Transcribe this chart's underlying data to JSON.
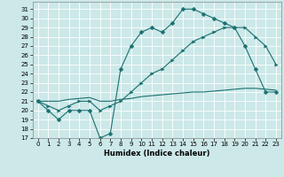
{
  "title": "",
  "xlabel": "Humidex (Indice chaleur)",
  "background_color": "#cce8e8",
  "grid_color": "#ffffff",
  "line_color": "#1a7070",
  "xlim": [
    -0.5,
    23.5
  ],
  "ylim": [
    17,
    31.8
  ],
  "yticks": [
    17,
    18,
    19,
    20,
    21,
    22,
    23,
    24,
    25,
    26,
    27,
    28,
    29,
    30,
    31
  ],
  "xticks": [
    0,
    1,
    2,
    3,
    4,
    5,
    6,
    7,
    8,
    9,
    10,
    11,
    12,
    13,
    14,
    15,
    16,
    17,
    18,
    19,
    20,
    21,
    22,
    23
  ],
  "line1_x": [
    0,
    1,
    2,
    3,
    4,
    5,
    6,
    7,
    8,
    9,
    10,
    11,
    12,
    13,
    14,
    15,
    16,
    17,
    18,
    19,
    20,
    21,
    22,
    23
  ],
  "line1_y": [
    21,
    20,
    19,
    20,
    20,
    20,
    17,
    17.5,
    24.5,
    27,
    28.5,
    29,
    28.5,
    29.5,
    31,
    31,
    30.5,
    30,
    29.5,
    29,
    27,
    24.5,
    22,
    22
  ],
  "line2_x": [
    0,
    1,
    2,
    3,
    4,
    5,
    6,
    7,
    8,
    9,
    10,
    11,
    12,
    13,
    14,
    15,
    16,
    17,
    18,
    19,
    20,
    21,
    22,
    23
  ],
  "line2_y": [
    21,
    20.5,
    20,
    20.5,
    21,
    21,
    20,
    20.5,
    21,
    22,
    23,
    24,
    24.5,
    25.5,
    26.5,
    27.5,
    28,
    28.5,
    29,
    29,
    29,
    28,
    27,
    25
  ],
  "line3_x": [
    0,
    1,
    2,
    3,
    4,
    5,
    6,
    7,
    8,
    9,
    10,
    11,
    12,
    13,
    14,
    15,
    16,
    17,
    18,
    19,
    20,
    21,
    22,
    23
  ],
  "line3_y": [
    21,
    21,
    21,
    21.2,
    21.3,
    21.4,
    21.0,
    21.0,
    21.2,
    21.3,
    21.5,
    21.6,
    21.7,
    21.8,
    21.9,
    22,
    22,
    22.1,
    22.2,
    22.3,
    22.4,
    22.4,
    22.3,
    22.2
  ],
  "marker1": "D",
  "marker2": "D",
  "markersize": 2.5,
  "linewidth": 0.8,
  "tick_fontsize": 5.0,
  "xlabel_fontsize": 6.0
}
